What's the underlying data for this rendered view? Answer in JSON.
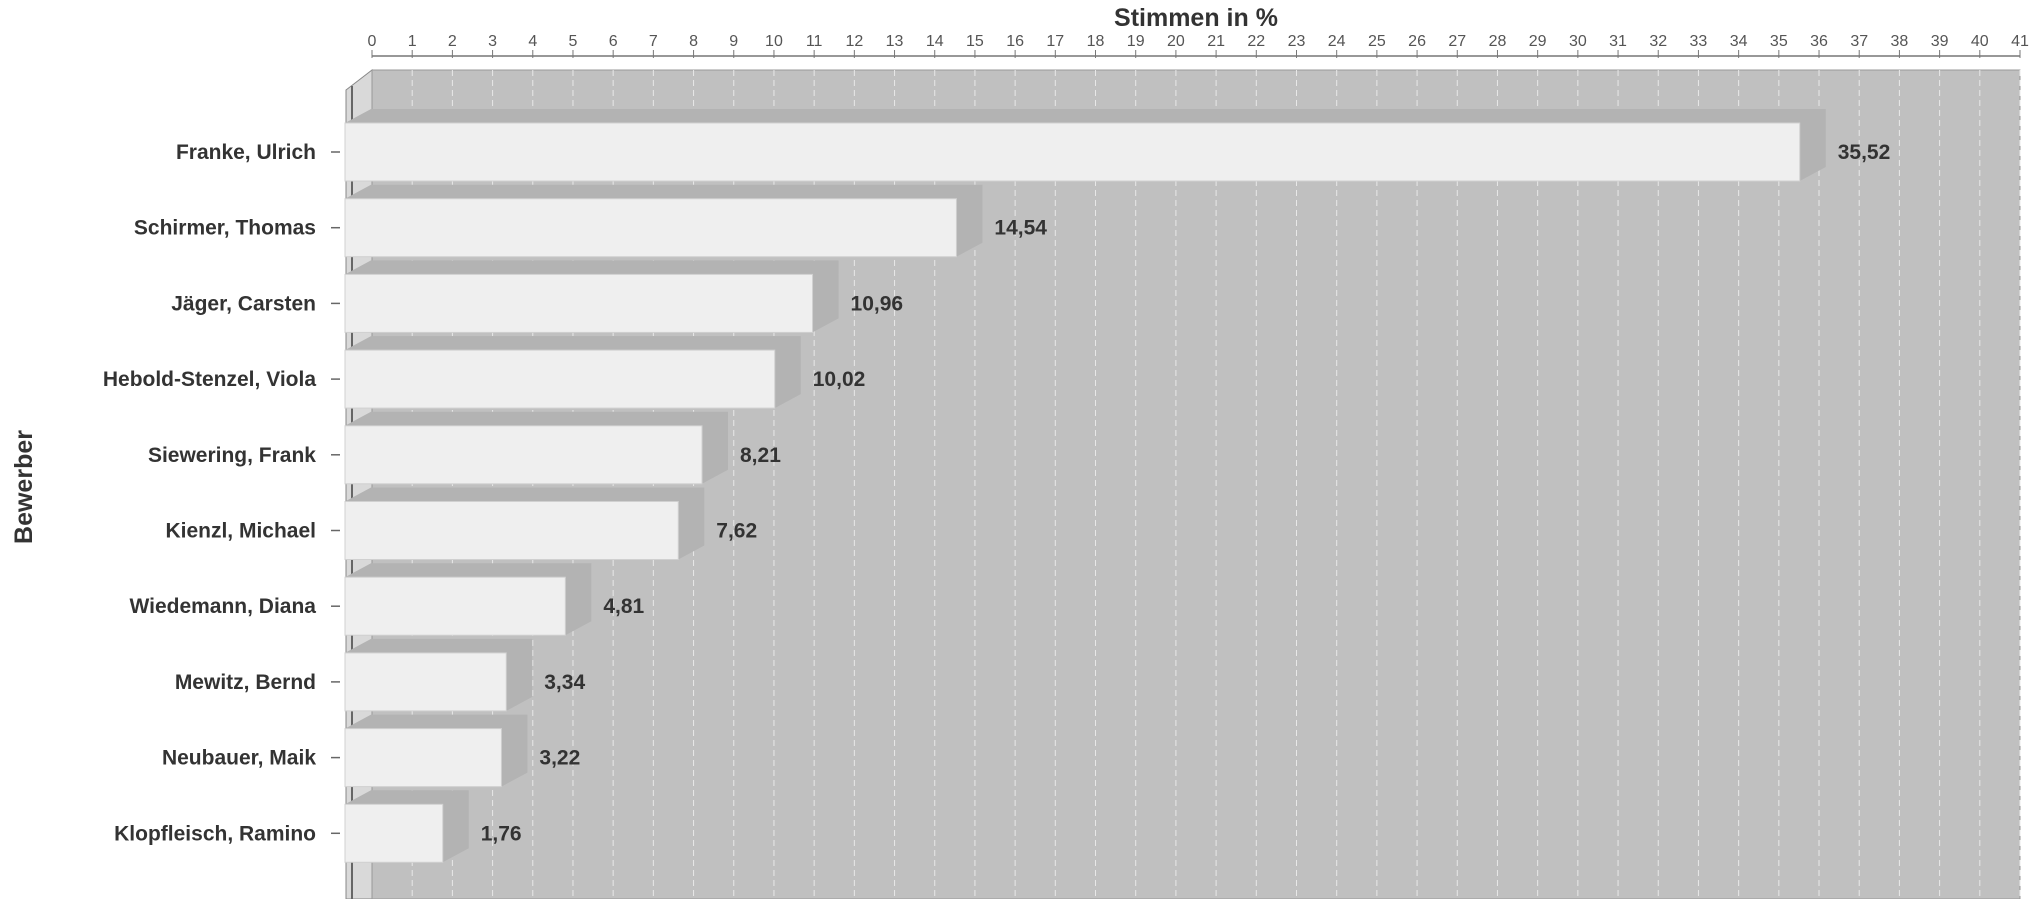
{
  "chart_data": {
    "type": "bar",
    "orientation": "horizontal",
    "title": "",
    "xlabel": "Stimmen in %",
    "ylabel": "Bewerber",
    "xlim": [
      0,
      41
    ],
    "x_ticks": [
      "0",
      "1",
      "2",
      "3",
      "4",
      "5",
      "6",
      "7",
      "8",
      "9",
      "10",
      "11",
      "12",
      "13",
      "14",
      "15",
      "16",
      "17",
      "18",
      "19",
      "20",
      "21",
      "22",
      "23",
      "24",
      "25",
      "26",
      "27",
      "28",
      "29",
      "30",
      "31",
      "32",
      "33",
      "34",
      "35",
      "36",
      "37",
      "38",
      "39",
      "40",
      "41"
    ],
    "categories": [
      "Franke, Ulrich",
      "Schirmer, Thomas",
      "Jäger, Carsten",
      "Hebold-Stenzel, Viola",
      "Siewering, Frank",
      "Kienzl, Michael",
      "Wiedemann, Diana",
      "Mewitz, Bernd",
      "Neubauer, Maik",
      "Klopfleisch, Ramino"
    ],
    "values": [
      35.52,
      14.54,
      10.96,
      10.02,
      8.21,
      7.62,
      4.81,
      3.34,
      3.22,
      1.76
    ],
    "value_labels": [
      "35,52",
      "14,54",
      "10,96",
      "10,02",
      "8,21",
      "7,62",
      "4,81",
      "3,34",
      "3,22",
      "1,76"
    ],
    "grid": true,
    "axis_position": "top",
    "colors": {
      "bar_face": "#efefef",
      "bar_shadow": "#b3b3b3",
      "plot_background": "#c0c0c0",
      "grid_line": "#e8e8e8",
      "text": "#333333"
    }
  }
}
